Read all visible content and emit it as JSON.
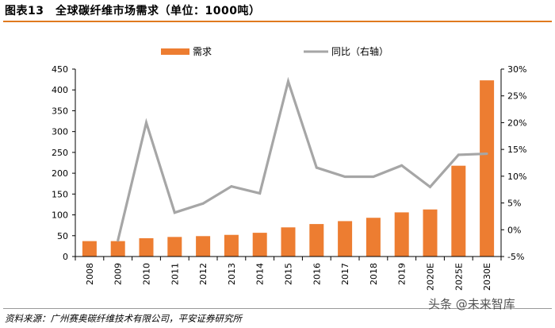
{
  "figure": {
    "title": "图表13　全球碳纤维市场需求（单位：1000吨）",
    "source": "资料来源：广州赛奥碳纤维技术有限公司，平安证券研究所",
    "watermark": "头条 @未来智库"
  },
  "colors": {
    "bar": "#ED7D31",
    "line": "#A6A6A6",
    "accent_rule": "#E07A1F"
  },
  "chart_data": {
    "type": "bar",
    "categories": [
      "2008",
      "2009",
      "2010",
      "2011",
      "2012",
      "2013",
      "2014",
      "2015",
      "2016",
      "2017",
      "2018",
      "2019",
      "2020E",
      "2025E",
      "2030E"
    ],
    "series": [
      {
        "name": "需求",
        "type": "bar",
        "axis": "left",
        "values": [
          37,
          37,
          44,
          47,
          49,
          52,
          57,
          70,
          78,
          85,
          93,
          106,
          113,
          218,
          423
        ]
      },
      {
        "name": "同比（右轴）",
        "type": "line",
        "axis": "right",
        "values": [
          null,
          -2,
          20,
          3.2,
          4.9,
          8.1,
          6.8,
          27.7,
          11.6,
          9.9,
          9.9,
          12,
          8,
          14,
          14.2
        ]
      }
    ],
    "y_left": {
      "min": 0,
      "max": 450,
      "ticks": [
        0,
        50,
        100,
        150,
        200,
        250,
        300,
        350,
        400,
        450
      ]
    },
    "y_right": {
      "min": -5,
      "max": 30,
      "ticks": [
        -5,
        0,
        5,
        10,
        15,
        20,
        25,
        30
      ],
      "tick_labels": [
        "-5%",
        "0%",
        "5%",
        "10%",
        "15%",
        "20%",
        "25%",
        "30%"
      ]
    },
    "legend": {
      "position": "top-center"
    },
    "grid": false
  }
}
